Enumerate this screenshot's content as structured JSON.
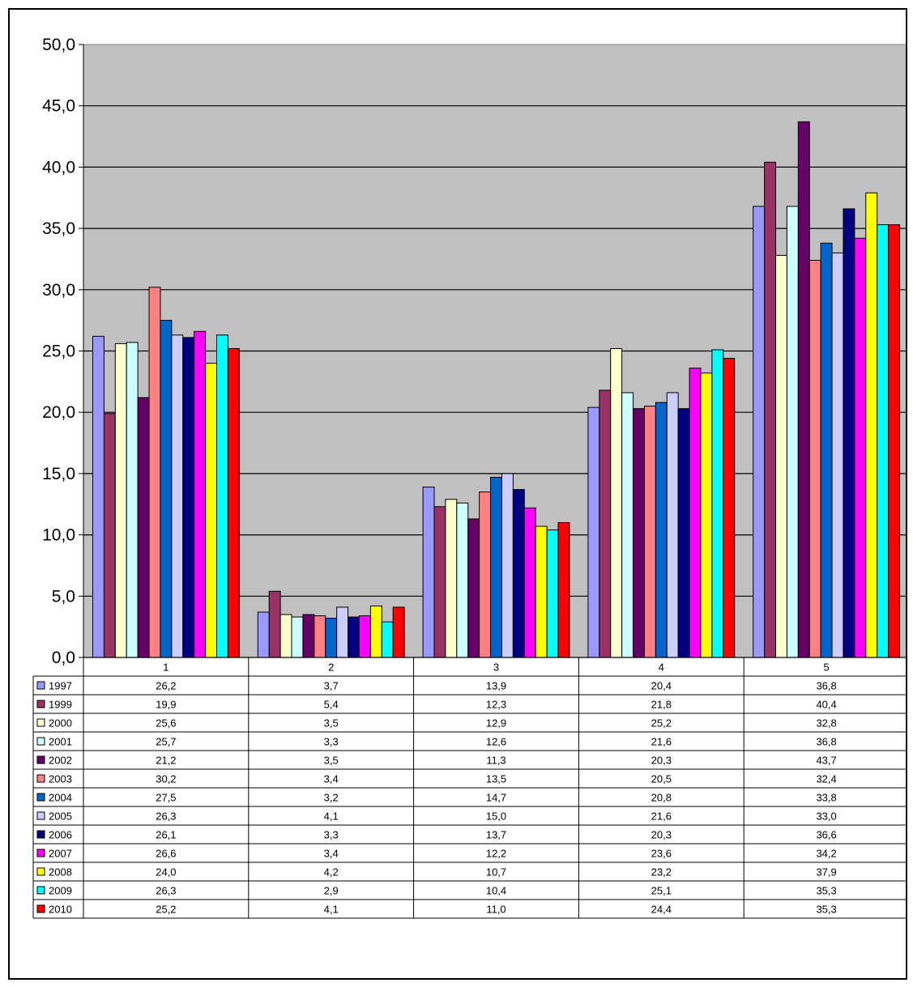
{
  "chart_data": {
    "type": "bar",
    "categories": [
      "1",
      "2",
      "3",
      "4",
      "5"
    ],
    "ylim": [
      0,
      50
    ],
    "yticks": [
      "0,0",
      "5,0",
      "10,0",
      "15,0",
      "20,0",
      "25,0",
      "30,0",
      "35,0",
      "40,0",
      "45,0",
      "50,0"
    ],
    "grid": true,
    "legend": "data-table-left",
    "plot_background": "#C0C0C0",
    "series": [
      {
        "name": "1997",
        "color": "#9999FF",
        "values": [
          26.2,
          3.7,
          13.9,
          20.4,
          36.8
        ],
        "labels": [
          "26,2",
          "3,7",
          "13,9",
          "20,4",
          "36,8"
        ]
      },
      {
        "name": "1999",
        "color": "#993366",
        "values": [
          19.9,
          5.4,
          12.3,
          21.8,
          40.4
        ],
        "labels": [
          "19,9",
          "5,4",
          "12,3",
          "21,8",
          "40,4"
        ]
      },
      {
        "name": "2000",
        "color": "#FFFFCC",
        "values": [
          25.6,
          3.5,
          12.9,
          25.2,
          32.8
        ],
        "labels": [
          "25,6",
          "3,5",
          "12,9",
          "25,2",
          "32,8"
        ]
      },
      {
        "name": "2001",
        "color": "#CCFFFF",
        "values": [
          25.7,
          3.3,
          12.6,
          21.6,
          36.8
        ],
        "labels": [
          "25,7",
          "3,3",
          "12,6",
          "21,6",
          "36,8"
        ]
      },
      {
        "name": "2002",
        "color": "#660066",
        "values": [
          21.2,
          3.5,
          11.3,
          20.3,
          43.7
        ],
        "labels": [
          "21,2",
          "3,5",
          "11,3",
          "20,3",
          "43,7"
        ]
      },
      {
        "name": "2003",
        "color": "#FF8080",
        "values": [
          30.2,
          3.4,
          13.5,
          20.5,
          32.4
        ],
        "labels": [
          "30,2",
          "3,4",
          "13,5",
          "20,5",
          "32,4"
        ]
      },
      {
        "name": "2004",
        "color": "#0066CC",
        "values": [
          27.5,
          3.2,
          14.7,
          20.8,
          33.8
        ],
        "labels": [
          "27,5",
          "3,2",
          "14,7",
          "20,8",
          "33,8"
        ]
      },
      {
        "name": "2005",
        "color": "#CCCCFF",
        "values": [
          26.3,
          4.1,
          15.0,
          21.6,
          33.0
        ],
        "labels": [
          "26,3",
          "4,1",
          "15,0",
          "21,6",
          "33,0"
        ]
      },
      {
        "name": "2006",
        "color": "#000080",
        "values": [
          26.1,
          3.3,
          13.7,
          20.3,
          36.6
        ],
        "labels": [
          "26,1",
          "3,3",
          "13,7",
          "20,3",
          "36,6"
        ]
      },
      {
        "name": "2007",
        "color": "#FF00FF",
        "values": [
          26.6,
          3.4,
          12.2,
          23.6,
          34.2
        ],
        "labels": [
          "26,6",
          "3,4",
          "12,2",
          "23,6",
          "34,2"
        ]
      },
      {
        "name": "2008",
        "color": "#FFFF00",
        "values": [
          24.0,
          4.2,
          10.7,
          23.2,
          37.9
        ],
        "labels": [
          "24,0",
          "4,2",
          "10,7",
          "23,2",
          "37,9"
        ]
      },
      {
        "name": "2009",
        "color": "#00FFFF",
        "values": [
          26.3,
          2.9,
          10.4,
          25.1,
          35.3
        ],
        "labels": [
          "26,3",
          "2,9",
          "10,4",
          "25,1",
          "35,3"
        ]
      },
      {
        "name": "2010",
        "color": "#FF0000",
        "values": [
          25.2,
          4.1,
          11.0,
          24.4,
          35.3
        ],
        "labels": [
          "25,2",
          "4,1",
          "11,0",
          "24,4",
          "35,3"
        ]
      }
    ]
  }
}
